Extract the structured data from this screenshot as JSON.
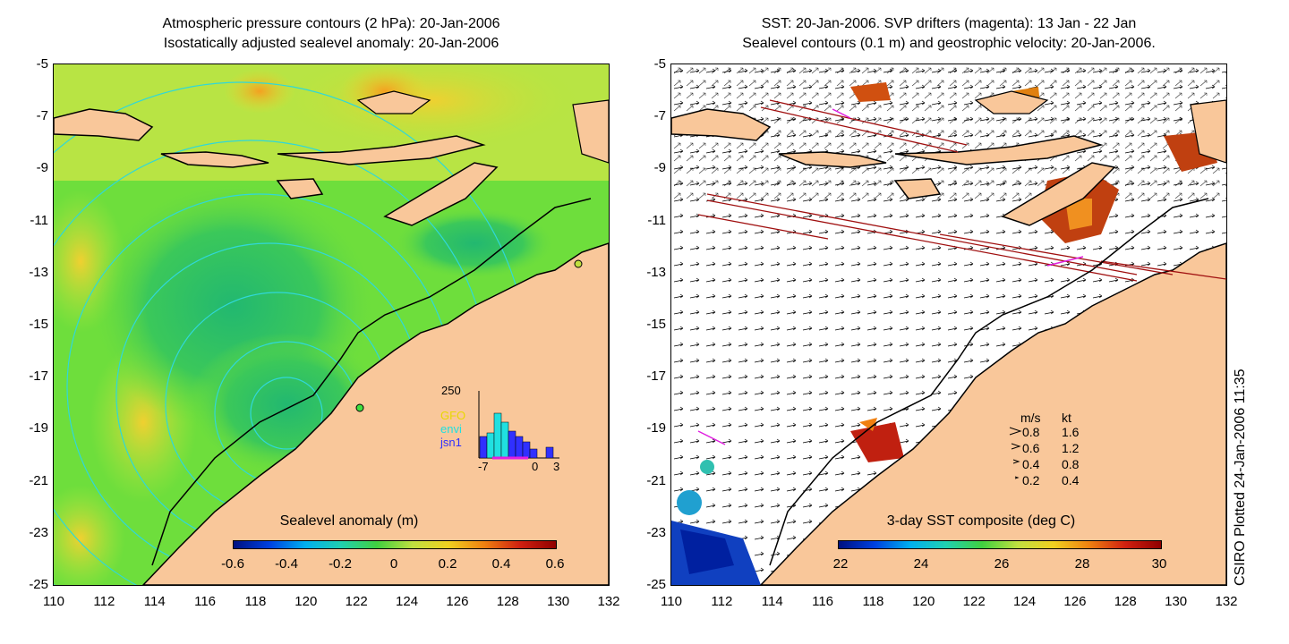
{
  "left_panel": {
    "title_line1": "Atmospheric pressure contours (2 hPa): 20-Jan-2006",
    "title_line2": "Isostatically adjusted sealevel anomaly: 20-Jan-2006",
    "colorbar": {
      "title": "Sealevel anomaly (m)",
      "ticks": [
        "-0.6",
        "-0.4",
        "-0.2",
        "0",
        "0.2",
        "0.4",
        "0.6"
      ]
    },
    "histogram": {
      "y_max_label": "250",
      "x_labels": [
        "-7",
        "0",
        "3"
      ],
      "legend": [
        {
          "label": "GFO",
          "color": "#e8d800"
        },
        {
          "label": "envi",
          "color": "#20e0e0"
        },
        {
          "label": "jsn1",
          "color": "#3030ff"
        }
      ]
    }
  },
  "right_panel": {
    "title_line1": "SST: 20-Jan-2006. SVP drifters (magenta): 13 Jan - 22 Jan",
    "title_line2": "Sealevel contours (0.1 m) and geostrophic velocity: 20-Jan-2006.",
    "colorbar": {
      "title": "3-day SST composite (deg C)",
      "ticks": [
        "22",
        "24",
        "26",
        "28",
        "30"
      ]
    },
    "velocity_legend": {
      "header_ms": "m/s",
      "header_kt": "kt",
      "rows": [
        {
          "ms": "0.8",
          "kt": "1.6"
        },
        {
          "ms": "0.6",
          "kt": "1.2"
        },
        {
          "ms": "0.4",
          "kt": "0.8"
        },
        {
          "ms": "0.2",
          "kt": "0.4"
        }
      ]
    }
  },
  "axes": {
    "x_ticks": [
      "110",
      "112",
      "114",
      "116",
      "118",
      "120",
      "122",
      "124",
      "126",
      "128",
      "130",
      "132"
    ],
    "y_ticks": [
      "-5",
      "-7",
      "-9",
      "-11",
      "-13",
      "-15",
      "-17",
      "-19",
      "-21",
      "-23",
      "-25"
    ]
  },
  "credit": "CSIRO Plotted 24-Jan-2006 11:35",
  "colors": {
    "land": "#f9c79a",
    "ocean_green": "#5fdc3a",
    "contour": "#30d8d8",
    "drifter": "#e020e0",
    "track": "#a01010"
  }
}
